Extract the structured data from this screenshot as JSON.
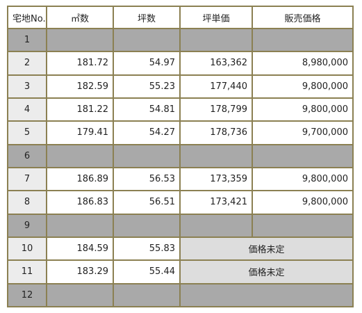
{
  "table": {
    "headers": [
      "宅地No.",
      "㎡数",
      "坪数",
      "坪単価",
      "販売価格"
    ],
    "rows": [
      {
        "lot": "1",
        "sqm": "",
        "tsubo": "",
        "unit_price": "",
        "price": "",
        "status": "vacant"
      },
      {
        "lot": "2",
        "sqm": "181.72",
        "tsubo": "54.97",
        "unit_price": "163,362",
        "price": "8,980,000",
        "status": "listed"
      },
      {
        "lot": "3",
        "sqm": "182.59",
        "tsubo": "55.23",
        "unit_price": "177,440",
        "price": "9,800,000",
        "status": "listed"
      },
      {
        "lot": "4",
        "sqm": "181.22",
        "tsubo": "54.81",
        "unit_price": "178,799",
        "price": "9,800,000",
        "status": "listed"
      },
      {
        "lot": "5",
        "sqm": "179.41",
        "tsubo": "54.27",
        "unit_price": "178,736",
        "price": "9,700,000",
        "status": "listed"
      },
      {
        "lot": "6",
        "sqm": "",
        "tsubo": "",
        "unit_price": "",
        "price": "",
        "status": "vacant"
      },
      {
        "lot": "7",
        "sqm": "186.89",
        "tsubo": "56.53",
        "unit_price": "173,359",
        "price": "9,800,000",
        "status": "listed"
      },
      {
        "lot": "8",
        "sqm": "186.83",
        "tsubo": "56.51",
        "unit_price": "173,421",
        "price": "9,800,000",
        "status": "listed"
      },
      {
        "lot": "9",
        "sqm": "",
        "tsubo": "",
        "unit_price": "",
        "price": "",
        "status": "vacant"
      },
      {
        "lot": "10",
        "sqm": "184.59",
        "tsubo": "55.83",
        "unit_price": "",
        "price": "",
        "status": "price-undecided",
        "undecided_label": "価格未定"
      },
      {
        "lot": "11",
        "sqm": "183.29",
        "tsubo": "55.44",
        "unit_price": "",
        "price": "",
        "status": "price-undecided",
        "undecided_label": "価格未定"
      },
      {
        "lot": "12",
        "sqm": "",
        "tsubo": "",
        "unit_price": "",
        "price": "",
        "status": "vacant"
      }
    ]
  },
  "colors": {
    "border": "#8b8052",
    "vacant": "#a9a9a9",
    "lot_cell": "#ececec",
    "undecided": "#dddddd"
  }
}
